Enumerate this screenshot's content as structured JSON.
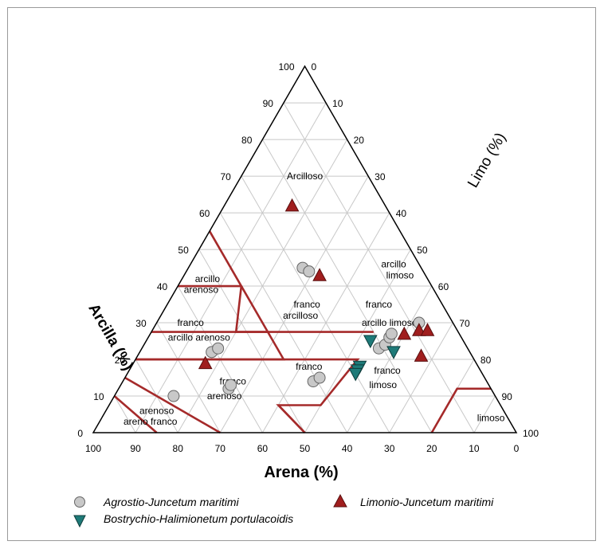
{
  "chart_data": {
    "type": "ternary-scatter",
    "axes": {
      "arena": {
        "label": "Arena (%)",
        "ticks": [
          "100",
          "90",
          "80",
          "70",
          "60",
          "50",
          "40",
          "30",
          "20",
          "10",
          "0"
        ]
      },
      "limo": {
        "label": "Limo (%)",
        "ticks": [
          "0",
          "10",
          "20",
          "30",
          "40",
          "50",
          "60",
          "70",
          "80",
          "90",
          "100"
        ]
      },
      "arcilla": {
        "label": "Arcilla (%)",
        "ticks": [
          "100",
          "90",
          "80",
          "70",
          "60",
          "50",
          "40",
          "30",
          "20",
          "10",
          "0"
        ]
      }
    },
    "grid": true,
    "grid_step": 10,
    "colors": {
      "class_lines": "#a52a2a",
      "grid": "#c8c8c8",
      "circle": "#c8c8c8",
      "triangle_up": "#a01e1e",
      "triangle_down": "#1e7a78"
    },
    "class_boundaries": [
      [
        [
          55,
          45,
          0
        ],
        [
          40,
          45,
          15
        ],
        [
          40,
          60,
          0
        ]
      ],
      [
        [
          40,
          45,
          15
        ],
        [
          20,
          45,
          35
        ],
        [
          20,
          80,
          0
        ]
      ],
      [
        [
          27.5,
          20,
          52.5
        ],
        [
          27.5,
          52.5,
          20
        ],
        [
          40,
          45,
          15
        ]
      ],
      [
        [
          27.5,
          45,
          27.5
        ],
        [
          27.5,
          72.5,
          0
        ]
      ],
      [
        [
          20,
          80,
          0
        ],
        [
          20,
          45,
          35
        ]
      ],
      [
        [
          20,
          45,
          35
        ],
        [
          20,
          27.5,
          52.5
        ],
        [
          7.5,
          42.5,
          50
        ],
        [
          7.5,
          52.5,
          40
        ],
        [
          0,
          50,
          50
        ]
      ],
      [
        [
          7.5,
          52.5,
          40
        ],
        [
          0,
          50,
          50
        ]
      ],
      [
        [
          0,
          20,
          80
        ],
        [
          12,
          8,
          80
        ],
        [
          12,
          0,
          88
        ]
      ],
      [
        [
          15,
          85,
          0
        ],
        [
          0,
          70,
          30
        ]
      ],
      [
        [
          10,
          90,
          0
        ],
        [
          0,
          85,
          15
        ]
      ]
    ],
    "class_labels": [
      {
        "text": "Arcilloso",
        "pos": [
          70,
          15,
          15
        ]
      },
      {
        "text": "arcillo",
        "pos": [
          46,
          6,
          48
        ]
      },
      {
        "text": "limoso",
        "pos": [
          43,
          6,
          51
        ]
      },
      {
        "text": "arcillo",
        "pos": [
          42,
          52,
          6
        ]
      },
      {
        "text": "arenoso",
        "pos": [
          39,
          55,
          6
        ]
      },
      {
        "text": "franco",
        "pos": [
          35,
          32,
          33
        ]
      },
      {
        "text": "arcilloso",
        "pos": [
          32,
          35,
          33
        ]
      },
      {
        "text": "franco",
        "pos": [
          35,
          15,
          50
        ]
      },
      {
        "text": "arcillo limoso",
        "pos": [
          30,
          15,
          55
        ]
      },
      {
        "text": "franco",
        "pos": [
          30,
          62,
          8
        ]
      },
      {
        "text": "arcillo arenoso",
        "pos": [
          26,
          62,
          12
        ]
      },
      {
        "text": "franco",
        "pos": [
          18,
          40,
          42
        ]
      },
      {
        "text": "franco",
        "pos": [
          17,
          22,
          61
        ]
      },
      {
        "text": "limoso",
        "pos": [
          13,
          25,
          62
        ]
      },
      {
        "text": "franco",
        "pos": [
          14,
          60,
          26
        ]
      },
      {
        "text": "arenoso",
        "pos": [
          10,
          64,
          26
        ]
      },
      {
        "text": "arenoso",
        "pos": [
          6,
          82,
          12
        ]
      },
      {
        "text": "areno franco",
        "pos": [
          3,
          85,
          12
        ]
      },
      {
        "text": "limoso",
        "pos": [
          4,
          4,
          92
        ]
      }
    ],
    "series": [
      {
        "name": "Agrostio-Juncetum maritimi",
        "marker": "circle",
        "points": [
          [
            10,
            76,
            14
          ],
          [
            12,
            62,
            26
          ],
          [
            13,
            61,
            26
          ],
          [
            22,
            61,
            17
          ],
          [
            23,
            59,
            18
          ],
          [
            14,
            41,
            45
          ],
          [
            15,
            39,
            46
          ],
          [
            45,
            28,
            27
          ],
          [
            44,
            27,
            29
          ],
          [
            23,
            21,
            56
          ],
          [
            24,
            19,
            57
          ],
          [
            26,
            17,
            57
          ],
          [
            27,
            16,
            57
          ],
          [
            30,
            8,
            62
          ]
        ]
      },
      {
        "name": "Limonio-Juncetum maritimi",
        "marker": "triangle-up",
        "points": [
          [
            62,
            22,
            16
          ],
          [
            43,
            25,
            32
          ],
          [
            19,
            64,
            17
          ],
          [
            27,
            13,
            60
          ],
          [
            28,
            9,
            63
          ],
          [
            28,
            7,
            65
          ],
          [
            21,
            12,
            67
          ]
        ]
      },
      {
        "name": "Bostrychio-Halimionetum portulacoidis",
        "marker": "triangle-down",
        "points": [
          [
            25,
            22,
            53
          ],
          [
            22,
            18,
            60
          ],
          [
            18,
            28,
            54
          ],
          [
            17,
            29,
            54
          ],
          [
            16,
            30,
            54
          ]
        ]
      }
    ]
  }
}
